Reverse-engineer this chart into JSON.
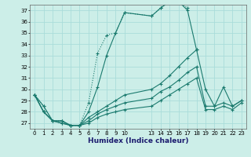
{
  "xlabel": "Humidex (Indice chaleur)",
  "bg_color": "#cceee8",
  "grid_color": "#aaddda",
  "line_color": "#1a7a6e",
  "ylim": [
    26.5,
    37.5
  ],
  "xlim": [
    -0.5,
    23.5
  ],
  "x_ticks": [
    0,
    1,
    2,
    3,
    4,
    5,
    6,
    7,
    8,
    9,
    10,
    13,
    14,
    15,
    16,
    17,
    18,
    19,
    20,
    21,
    22,
    23
  ],
  "y_ticks": [
    27,
    28,
    29,
    30,
    31,
    32,
    33,
    34,
    35,
    36,
    37
  ],
  "series": [
    {
      "x": [
        0,
        1,
        2,
        3,
        4,
        5,
        6,
        7,
        8,
        9,
        10,
        13,
        14,
        15,
        16,
        17
      ],
      "y": [
        29.5,
        28.5,
        27.2,
        27.2,
        26.8,
        26.8,
        28.8,
        33.2,
        34.8,
        35.0,
        36.8,
        36.5,
        37.2,
        37.8,
        37.8,
        37.2
      ],
      "style": ":",
      "marker": "+"
    },
    {
      "x": [
        0,
        1,
        2,
        3,
        4,
        5,
        6,
        7,
        8,
        9,
        10,
        13,
        14,
        15,
        16,
        17,
        18
      ],
      "y": [
        29.5,
        28.5,
        27.2,
        27.2,
        26.8,
        26.8,
        28.0,
        30.2,
        33.0,
        35.0,
        36.8,
        36.5,
        37.2,
        37.8,
        37.8,
        37.0,
        33.5
      ],
      "style": "-",
      "marker": "+"
    },
    {
      "x": [
        0,
        1,
        2,
        3,
        4,
        5,
        6,
        7,
        8,
        9,
        10,
        13,
        14,
        15,
        16,
        17,
        18,
        19,
        20,
        21,
        22,
        23
      ],
      "y": [
        29.5,
        28.0,
        27.2,
        27.2,
        26.8,
        26.8,
        27.5,
        28.0,
        28.5,
        29.0,
        29.5,
        30.0,
        30.5,
        31.2,
        32.0,
        32.8,
        33.5,
        30.0,
        28.5,
        30.2,
        28.5,
        29.0
      ],
      "style": "-",
      "marker": "+"
    },
    {
      "x": [
        0,
        1,
        2,
        3,
        4,
        5,
        6,
        7,
        8,
        9,
        10,
        13,
        14,
        15,
        16,
        17,
        18,
        19,
        20,
        21,
        22,
        23
      ],
      "y": [
        29.5,
        28.0,
        27.2,
        27.0,
        26.8,
        26.8,
        27.2,
        27.8,
        28.2,
        28.5,
        28.8,
        29.2,
        29.8,
        30.2,
        30.8,
        31.5,
        32.0,
        28.5,
        28.5,
        28.8,
        28.5,
        29.0
      ],
      "style": "-",
      "marker": "+"
    },
    {
      "x": [
        0,
        1,
        2,
        3,
        4,
        5,
        6,
        7,
        8,
        9,
        10,
        13,
        14,
        15,
        16,
        17,
        18,
        19,
        20,
        21,
        22,
        23
      ],
      "y": [
        29.5,
        28.0,
        27.2,
        27.0,
        26.8,
        26.8,
        27.0,
        27.5,
        27.8,
        28.0,
        28.2,
        28.5,
        29.0,
        29.5,
        30.0,
        30.5,
        31.0,
        28.2,
        28.2,
        28.5,
        28.2,
        28.8
      ],
      "style": "-",
      "marker": "+"
    }
  ]
}
